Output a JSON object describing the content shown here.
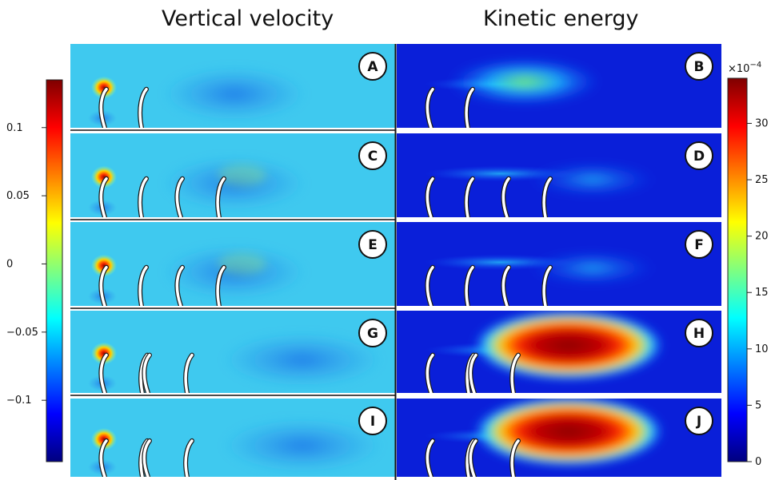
{
  "titles": {
    "left": "Vertical velocity",
    "right": "Kinetic energy"
  },
  "panels": [
    {
      "label": "A",
      "column": "vertical-velocity",
      "fibers": 2,
      "arrangement": "single-pair"
    },
    {
      "label": "B",
      "column": "kinetic-energy",
      "fibers": 2,
      "arrangement": "single-pair"
    },
    {
      "label": "C",
      "column": "vertical-velocity",
      "fibers": 4,
      "arrangement": "two-pairs-wide"
    },
    {
      "label": "D",
      "column": "kinetic-energy",
      "fibers": 4,
      "arrangement": "two-pairs-wide"
    },
    {
      "label": "E",
      "column": "vertical-velocity",
      "fibers": 4,
      "arrangement": "two-pairs-wide"
    },
    {
      "label": "F",
      "column": "kinetic-energy",
      "fibers": 4,
      "arrangement": "two-pairs-wide"
    },
    {
      "label": "G",
      "column": "vertical-velocity",
      "fibers": 4,
      "arrangement": "tight-cluster"
    },
    {
      "label": "H",
      "column": "kinetic-energy",
      "fibers": 4,
      "arrangement": "tight-cluster"
    },
    {
      "label": "I",
      "column": "vertical-velocity",
      "fibers": 4,
      "arrangement": "tight-cluster"
    },
    {
      "label": "J",
      "column": "kinetic-energy",
      "fibers": 4,
      "arrangement": "tight-cluster"
    }
  ],
  "colorbars": {
    "left": {
      "ticks": [
        "0.1",
        "0.05",
        "0",
        "−0.05",
        "−0.1"
      ],
      "tick_values": [
        0.1,
        0.05,
        0,
        -0.05,
        -0.1
      ],
      "range": [
        -0.145,
        0.135
      ],
      "colormap": "jet"
    },
    "right": {
      "multiplier": "×10",
      "exponent": "−4",
      "ticks": [
        "30",
        "25",
        "20",
        "15",
        "10",
        "5",
        "0"
      ],
      "tick_values": [
        30,
        25,
        20,
        15,
        10,
        5,
        0
      ],
      "range": [
        0,
        34
      ],
      "colormap": "jet"
    }
  },
  "colors": {
    "jet_dark_blue": "#00007f",
    "jet_blue": "#0000ff",
    "jet_cyan": "#00ffff",
    "jet_yellow": "#ffff00",
    "jet_red": "#ff0000",
    "jet_dark_red": "#7f0000",
    "velocity_background": "#3fc9ef",
    "energy_background": "#0a1fd9"
  }
}
